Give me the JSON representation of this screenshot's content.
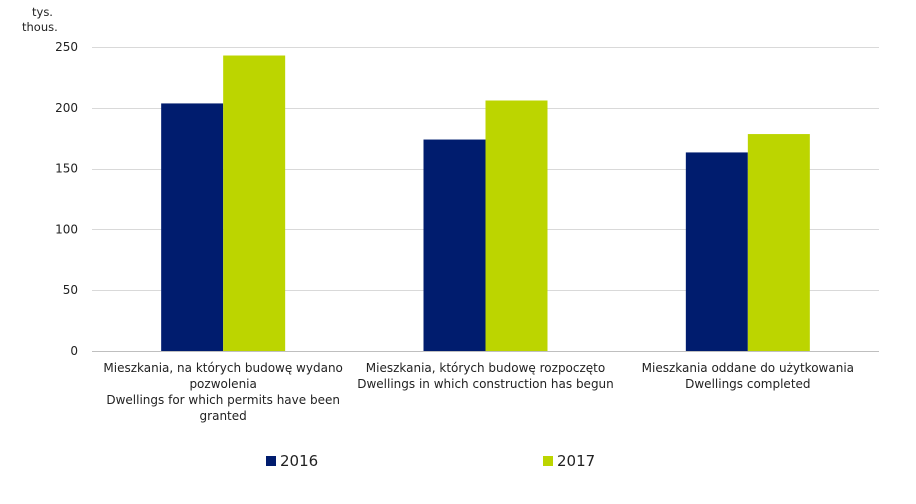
{
  "chart_data": {
    "type": "bar",
    "y_unit": [
      "tys.",
      "thous."
    ],
    "ylim": [
      0,
      250
    ],
    "yticks": [
      0,
      50,
      100,
      150,
      200,
      250
    ],
    "grid": true,
    "legend_position": "bottom",
    "categories": [
      [
        "Mieszkania, na których budowę wydano",
        "pozwolenia",
        "Dwellings for which permits have been",
        "granted"
      ],
      [
        "Mieszkania, których budowę rozpoczęto",
        "Dwellings in which construction has begun"
      ],
      [
        "Mieszkania oddane do użytkowania",
        "Dwellings completed"
      ]
    ],
    "series": [
      {
        "name": "2016",
        "color": "#001c6e",
        "values": [
          203.6,
          173.9,
          163.3
        ]
      },
      {
        "name": "2017",
        "color": "#bcd500",
        "values": [
          243.0,
          206.0,
          178.4
        ]
      }
    ]
  }
}
